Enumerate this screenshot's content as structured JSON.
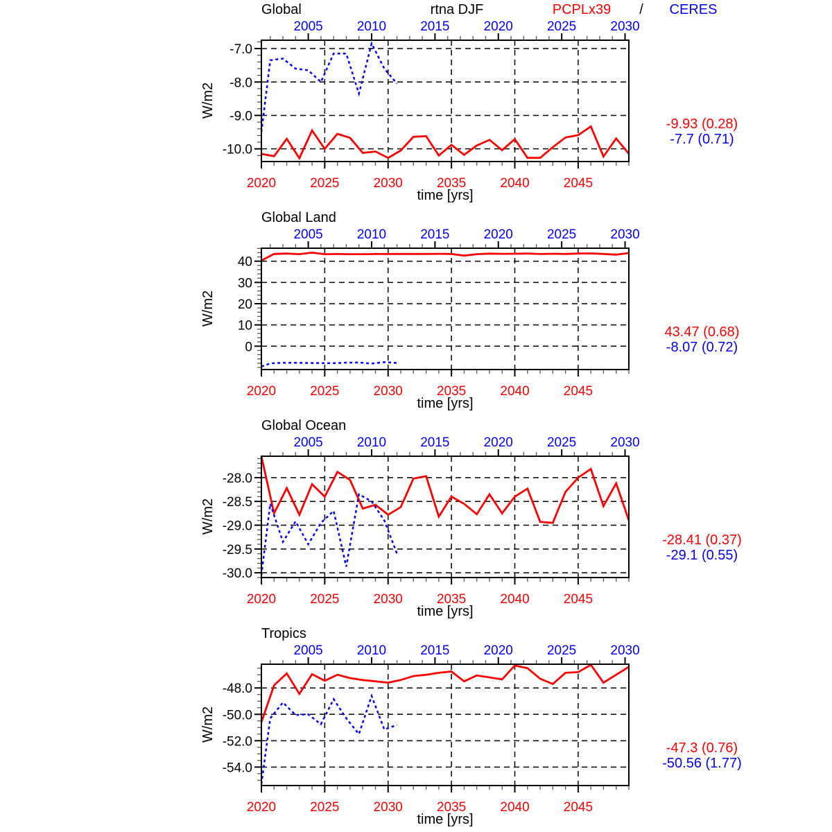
{
  "header": {
    "run_label": "rtna DJF",
    "model_name": "PCPLx39",
    "separator": "/",
    "obs_name": "CERES"
  },
  "colors": {
    "model": "#ff0000",
    "obs": "#0000ff",
    "bottom_axis_labels": "#ff0000",
    "top_axis_labels": "#0000ff",
    "grid": "#000000"
  },
  "chart_data": [
    {
      "type": "line",
      "title": "Global",
      "xlabel": "time [yrs]",
      "ylabel": "W/m2",
      "grid": true,
      "x_bottom": {
        "range": [
          2020,
          2049
        ],
        "major_ticks": [
          2020,
          2025,
          2030,
          2035,
          2040,
          2045
        ],
        "minor_step": 1
      },
      "x_top": {
        "range": [
          2001.3,
          2030.3
        ],
        "major_ticks": [
          2005,
          2010,
          2015,
          2020,
          2025,
          2030
        ],
        "minor_step": 1
      },
      "y": {
        "range": [
          -10.38,
          -6.75
        ],
        "major_ticks": [
          -7,
          -8,
          -9,
          -10
        ],
        "tick_labels": [
          "-7.0",
          "-8.0",
          "-9.0",
          "-10.0"
        ],
        "minor_step": 0.2
      },
      "series": [
        {
          "name": "PCPLx39",
          "axis": "bottom",
          "color": "#ff0000",
          "line_style": "solid",
          "start_year": 2020,
          "values": [
            -10.15,
            -10.22,
            -9.7,
            -10.28,
            -9.45,
            -10.0,
            -9.55,
            -9.67,
            -10.12,
            -10.08,
            -10.27,
            -10.05,
            -9.64,
            -9.62,
            -10.2,
            -9.88,
            -10.18,
            -9.9,
            -9.73,
            -10.04,
            -9.71,
            -10.27,
            -10.27,
            -9.95,
            -9.66,
            -9.59,
            -9.33,
            -10.23,
            -9.69,
            -10.15
          ]
        },
        {
          "name": "CERES",
          "axis": "top",
          "color": "#0000ff",
          "line_style": "dashed",
          "start_year": 2001,
          "values": [
            -9.5,
            -7.35,
            -7.3,
            -7.6,
            -7.65,
            -8.0,
            -7.15,
            -7.15,
            -8.35,
            -6.85,
            -7.6,
            -8.05
          ]
        }
      ],
      "stats": {
        "model_mean_std": "-9.93 (0.28)",
        "obs_mean_std": "-7.7 (0.71)"
      }
    },
    {
      "type": "line",
      "title": "Global Land",
      "xlabel": "time [yrs]",
      "ylabel": "W/m2",
      "grid": true,
      "x_bottom": {
        "range": [
          2020,
          2049
        ],
        "major_ticks": [
          2020,
          2025,
          2030,
          2035,
          2040,
          2045
        ],
        "minor_step": 1
      },
      "x_top": {
        "range": [
          2001.3,
          2030.3
        ],
        "major_ticks": [
          2005,
          2010,
          2015,
          2020,
          2025,
          2030
        ],
        "minor_step": 1
      },
      "y": {
        "range": [
          -11.0,
          46.1
        ],
        "major_ticks": [
          40,
          30,
          20,
          10,
          0
        ],
        "tick_labels": [
          "40",
          "30",
          "20",
          "10",
          "0"
        ],
        "minor_step": 2
      },
      "series": [
        {
          "name": "PCPLx39",
          "axis": "bottom",
          "color": "#ff0000",
          "line_style": "solid",
          "start_year": 2020,
          "values": [
            40.3,
            43.4,
            43.6,
            43.3,
            44.0,
            43.3,
            43.35,
            43.3,
            43.3,
            43.35,
            43.4,
            43.4,
            43.4,
            43.4,
            43.45,
            43.4,
            42.6,
            43.3,
            43.55,
            43.45,
            43.5,
            43.6,
            43.35,
            43.5,
            43.4,
            43.6,
            43.65,
            43.4,
            43.05,
            43.8
          ]
        },
        {
          "name": "CERES",
          "axis": "top",
          "color": "#0000ff",
          "line_style": "dashed",
          "start_year": 2001,
          "values": [
            -9.6,
            -8.1,
            -7.8,
            -7.85,
            -7.9,
            -7.95,
            -8.0,
            -7.75,
            -7.7,
            -8.2,
            -7.5,
            -7.9
          ]
        }
      ],
      "stats": {
        "model_mean_std": "43.47 (0.68)",
        "obs_mean_std": "-8.07 (0.72)"
      }
    },
    {
      "type": "line",
      "title": "Global Ocean",
      "xlabel": "time [yrs]",
      "ylabel": "W/m2",
      "grid": true,
      "x_bottom": {
        "range": [
          2020,
          2049
        ],
        "major_ticks": [
          2020,
          2025,
          2030,
          2035,
          2040,
          2045
        ],
        "minor_step": 1
      },
      "x_top": {
        "range": [
          2001.3,
          2030.3
        ],
        "major_ticks": [
          2005,
          2010,
          2015,
          2020,
          2025,
          2030
        ],
        "minor_step": 1
      },
      "y": {
        "range": [
          -30.1,
          -27.55
        ],
        "major_ticks": [
          -28,
          -28.5,
          -29,
          -29.5,
          -30
        ],
        "tick_labels": [
          "-28.0",
          "-28.5",
          "-29.0",
          "-29.5",
          "-30.0"
        ],
        "minor_step": 0.1
      },
      "series": [
        {
          "name": "PCPLx39",
          "axis": "bottom",
          "color": "#ff0000",
          "line_style": "solid",
          "start_year": 2020,
          "values": [
            -27.55,
            -28.75,
            -28.22,
            -28.78,
            -28.14,
            -28.4,
            -27.88,
            -28.05,
            -28.65,
            -28.57,
            -28.78,
            -28.62,
            -28.02,
            -27.97,
            -28.82,
            -28.4,
            -28.55,
            -28.77,
            -28.35,
            -28.75,
            -28.4,
            -28.23,
            -28.93,
            -28.95,
            -28.3,
            -28.0,
            -27.82,
            -28.6,
            -28.12,
            -28.9
          ]
        },
        {
          "name": "CERES",
          "axis": "top",
          "color": "#0000ff",
          "line_style": "dashed",
          "start_year": 2001,
          "values": [
            -30.05,
            -28.55,
            -29.35,
            -28.92,
            -29.4,
            -28.95,
            -28.7,
            -29.87,
            -28.35,
            -28.5,
            -28.9,
            -29.6
          ]
        }
      ],
      "stats": {
        "model_mean_std": "-28.41 (0.37)",
        "obs_mean_std": "-29.1 (0.55)"
      }
    },
    {
      "type": "line",
      "title": "Tropics",
      "xlabel": "time [yrs]",
      "ylabel": "W/m2",
      "grid": true,
      "x_bottom": {
        "range": [
          2020,
          2049
        ],
        "major_ticks": [
          2020,
          2025,
          2030,
          2035,
          2040,
          2045
        ],
        "minor_step": 1
      },
      "x_top": {
        "range": [
          2001.3,
          2030.3
        ],
        "major_ticks": [
          2005,
          2010,
          2015,
          2020,
          2025,
          2030
        ],
        "minor_step": 1
      },
      "y": {
        "range": [
          -55.4,
          -46.2
        ],
        "major_ticks": [
          -48,
          -50,
          -52,
          -54
        ],
        "tick_labels": [
          "-48.0",
          "-50.0",
          "-52.0",
          "-54.0"
        ],
        "minor_step": 0.5
      },
      "series": [
        {
          "name": "PCPLx39",
          "axis": "bottom",
          "color": "#ff0000",
          "line_style": "solid",
          "start_year": 2020,
          "values": [
            -50.6,
            -47.8,
            -46.9,
            -48.45,
            -46.95,
            -47.45,
            -47.0,
            -47.25,
            -47.4,
            -47.5,
            -47.6,
            -47.4,
            -47.1,
            -47.0,
            -46.85,
            -46.75,
            -47.5,
            -47.05,
            -47.2,
            -47.35,
            -46.3,
            -46.5,
            -47.3,
            -47.7,
            -46.85,
            -46.8,
            -46.25,
            -47.6,
            -47.0,
            -46.4
          ]
        },
        {
          "name": "CERES",
          "axis": "top",
          "color": "#0000ff",
          "line_style": "dashed",
          "start_year": 2001,
          "values": [
            -55.3,
            -50.3,
            -49.1,
            -50.05,
            -50.0,
            -50.75,
            -48.85,
            -50.3,
            -51.5,
            -48.6,
            -51.15,
            -50.8
          ]
        }
      ],
      "stats": {
        "model_mean_std": "-47.3 (0.76)",
        "obs_mean_std": "-50.56 (1.77)"
      }
    }
  ]
}
